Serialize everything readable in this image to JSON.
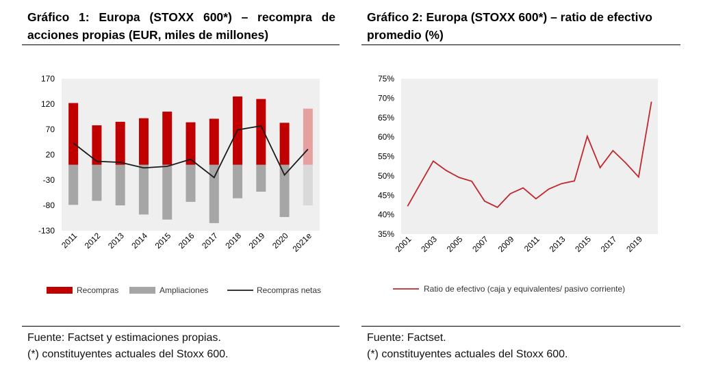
{
  "chart1": {
    "title": "Gráfico 1: Europa (STOXX 600*) – recompra de acciones propias (EUR, miles de millones)",
    "notes": [
      "Fuente: Factset y estimaciones propias.",
      "(*) constituyentes actuales del Stoxx 600."
    ],
    "colors": {
      "recompras": "#c00000",
      "recompras_est": "#e6a0a0",
      "ampliaciones": "#a6a6a6",
      "ampliaciones_est": "#d9d9d9",
      "netas": "#1a1a1a",
      "plot_bg": "#efefef"
    }
  },
  "chart2": {
    "title": "Gráfico 2: Europa (STOXX 600*) – ratio de efectivo promedio (%)",
    "notes": [
      "Fuente: Factset.",
      "(*) constituyentes actuales del Stoxx 600."
    ],
    "colors": {
      "line": "#c0262c",
      "plot_bg": "#efefef"
    }
  },
  "chart_data": [
    {
      "type": "bar",
      "title": "Gráfico 1: Europa (STOXX 600*) – recompra de acciones propias (EUR, miles de millones)",
      "categories": [
        "2011",
        "2012",
        "2013",
        "2014",
        "2015",
        "2016",
        "2017",
        "2018",
        "2019",
        "2020",
        "2021e"
      ],
      "series": [
        {
          "name": "Recompras",
          "kind": "bar",
          "values": [
            122,
            78,
            85,
            92,
            105,
            84,
            91,
            135,
            130,
            83,
            111
          ]
        },
        {
          "name": "Ampliaciones",
          "kind": "bar",
          "values": [
            -79,
            -71,
            -80,
            -98,
            -108,
            -73,
            -115,
            -66,
            -53,
            -103,
            -80
          ]
        },
        {
          "name": "Recompras netas",
          "kind": "line",
          "values": [
            43,
            7,
            5,
            -6,
            -3,
            11,
            -25,
            69,
            77,
            -20,
            31
          ]
        }
      ],
      "yticks": [
        170,
        120,
        70,
        20,
        -30,
        -80,
        -130
      ],
      "ylim": [
        -130,
        170
      ],
      "grid": false,
      "estimate_category": "2021e",
      "legend": "bottom"
    },
    {
      "type": "line",
      "title": "Gráfico 2: Europa (STOXX 600*) – ratio de efectivo promedio (%)",
      "x": [
        "2001",
        "2002",
        "2003",
        "2004",
        "2005",
        "2006",
        "2007",
        "2008",
        "2009",
        "2010",
        "2011",
        "2012",
        "2013",
        "2014",
        "2015",
        "2016",
        "2017",
        "2018",
        "2019",
        "2020"
      ],
      "xtick_labels": [
        "2001",
        "2003",
        "2005",
        "2007",
        "2009",
        "2011",
        "2013",
        "2015",
        "2017",
        "2019"
      ],
      "series": [
        {
          "name": "Ratio de efectivo (caja y equivalentes/ pasivo corriente)",
          "values": [
            42.2,
            48.0,
            53.8,
            51.4,
            49.6,
            48.6,
            43.5,
            41.9,
            45.4,
            46.9,
            44.1,
            46.6,
            48.0,
            48.7,
            60.2,
            52.1,
            56.5,
            53.3,
            49.7,
            69.1
          ]
        }
      ],
      "yticks": [
        "75%",
        "70%",
        "65%",
        "60%",
        "55%",
        "50%",
        "45%",
        "40%",
        "35%"
      ],
      "ylim": [
        35,
        75
      ],
      "y_unit": "%",
      "grid": false,
      "legend": "bottom"
    }
  ]
}
